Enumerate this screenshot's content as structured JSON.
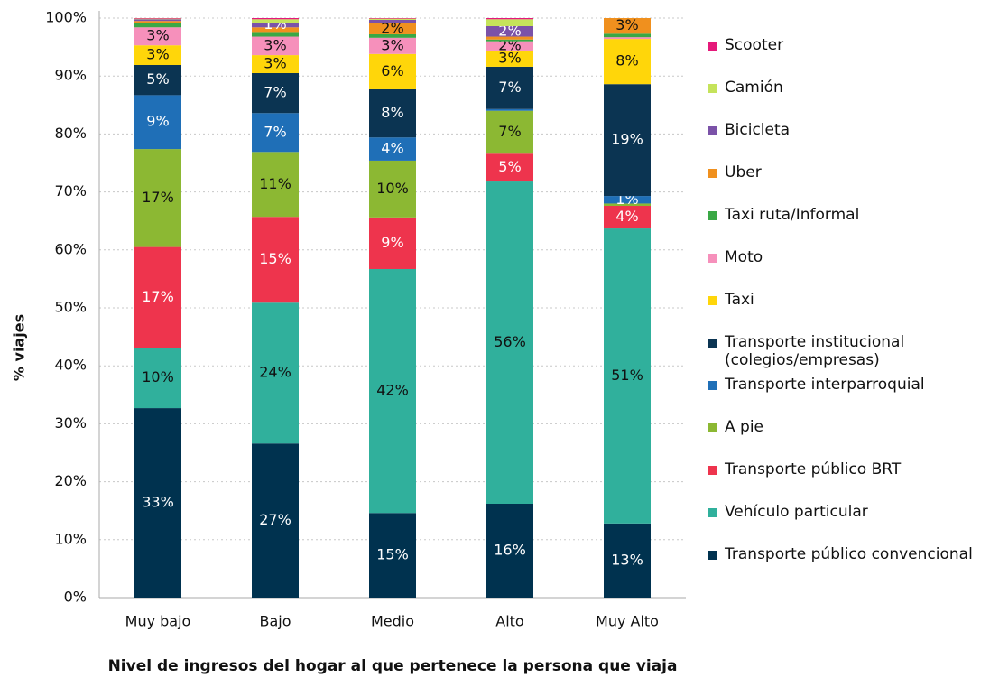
{
  "chart_data": {
    "type": "stacked_bar",
    "x_label": "Nivel de ingresos del hogar al que pertenece la persona que viaja",
    "y_label": "% viajes",
    "categories": [
      "Muy bajo",
      "Bajo",
      "Medio",
      "Alto",
      "Muy Alto"
    ],
    "ylim": [
      0,
      100
    ],
    "yticks": [
      {
        "value": 0,
        "label": "0%"
      },
      {
        "value": 10,
        "label": "10%"
      },
      {
        "value": 20,
        "label": "20%"
      },
      {
        "value": 30,
        "label": "30%"
      },
      {
        "value": 40,
        "label": "40%"
      },
      {
        "value": 50,
        "label": "50%"
      },
      {
        "value": 60,
        "label": "60%"
      },
      {
        "value": 70,
        "label": "70%"
      },
      {
        "value": 80,
        "label": "80%"
      },
      {
        "value": 90,
        "label": "90%"
      },
      {
        "value": 100,
        "label": "100%"
      }
    ],
    "grid": true,
    "legend": "right",
    "series": [
      {
        "name": "Transporte público convencional",
        "color": "#00324f",
        "values": [
          32.7,
          26.6,
          14.6,
          16.2,
          12.8
        ],
        "value_labels": [
          "33%",
          "27%",
          "15%",
          "16%",
          "13%"
        ]
      },
      {
        "name": "Vehículo particular",
        "color": "#30b09c",
        "values": [
          10.4,
          24.3,
          42.1,
          55.6,
          50.9
        ],
        "value_labels": [
          "10%",
          "24%",
          "42%",
          "56%",
          "51%"
        ]
      },
      {
        "name": "Transporte público BRT",
        "color": "#ee344d",
        "values": [
          17.4,
          14.8,
          8.9,
          4.8,
          3.9
        ],
        "value_labels": [
          "17%",
          "15%",
          "9%",
          "5%",
          "4%"
        ]
      },
      {
        "name": "A pie",
        "color": "#8cb833",
        "values": [
          16.9,
          11.2,
          9.8,
          7.4,
          0.4
        ],
        "value_labels": [
          "17%",
          "11%",
          "10%",
          "7%",
          null
        ]
      },
      {
        "name": "Transporte interparroquial",
        "color": "#1f6fb7",
        "values": [
          9.3,
          6.7,
          4.0,
          0.3,
          1.3
        ],
        "value_labels": [
          "9%",
          "7%",
          "4%",
          null,
          "1%"
        ]
      },
      {
        "name": "Transporte institucional\n(colegios/empresas)",
        "color": "#0b3452",
        "values": [
          5.2,
          6.9,
          8.3,
          7.3,
          19.3
        ],
        "value_labels": [
          "5%",
          "7%",
          "8%",
          "7%",
          "19%"
        ]
      },
      {
        "name": "Taxi",
        "color": "#ffd60a",
        "values": [
          3.4,
          3.1,
          6.1,
          2.8,
          7.8
        ],
        "value_labels": [
          "3%",
          "3%",
          "6%",
          "3%",
          "8%"
        ]
      },
      {
        "name": "Moto",
        "color": "#f690bb",
        "values": [
          3.1,
          3.2,
          2.8,
          1.6,
          0.3
        ],
        "value_labels": [
          "3%",
          "3%",
          "3%",
          "2%",
          null
        ]
      },
      {
        "name": "Taxi ruta/Informal",
        "color": "#3aa845",
        "values": [
          0.7,
          0.8,
          0.6,
          0.3,
          0.6
        ],
        "value_labels": [
          null,
          null,
          null,
          null,
          null
        ]
      },
      {
        "name": "Uber",
        "color": "#f0901e",
        "values": [
          0.4,
          0.8,
          1.9,
          0.5,
          2.7
        ],
        "value_labels": [
          null,
          null,
          "2%",
          null,
          "3%"
        ]
      },
      {
        "name": "Bicicleta",
        "color": "#7b52a8",
        "values": [
          0.3,
          0.8,
          0.6,
          1.8,
          0
        ],
        "value_labels": [
          null,
          "1%",
          null,
          "2%",
          null
        ]
      },
      {
        "name": "Camión",
        "color": "#c5e35b",
        "values": [
          0.1,
          0.6,
          0.2,
          1.2,
          0
        ],
        "value_labels": [
          null,
          null,
          null,
          null,
          null
        ]
      },
      {
        "name": "Scooter",
        "color": "#e5197a",
        "values": [
          0.1,
          0.2,
          0.1,
          0.2,
          0
        ],
        "value_labels": [
          null,
          null,
          null,
          null,
          null
        ]
      }
    ]
  }
}
